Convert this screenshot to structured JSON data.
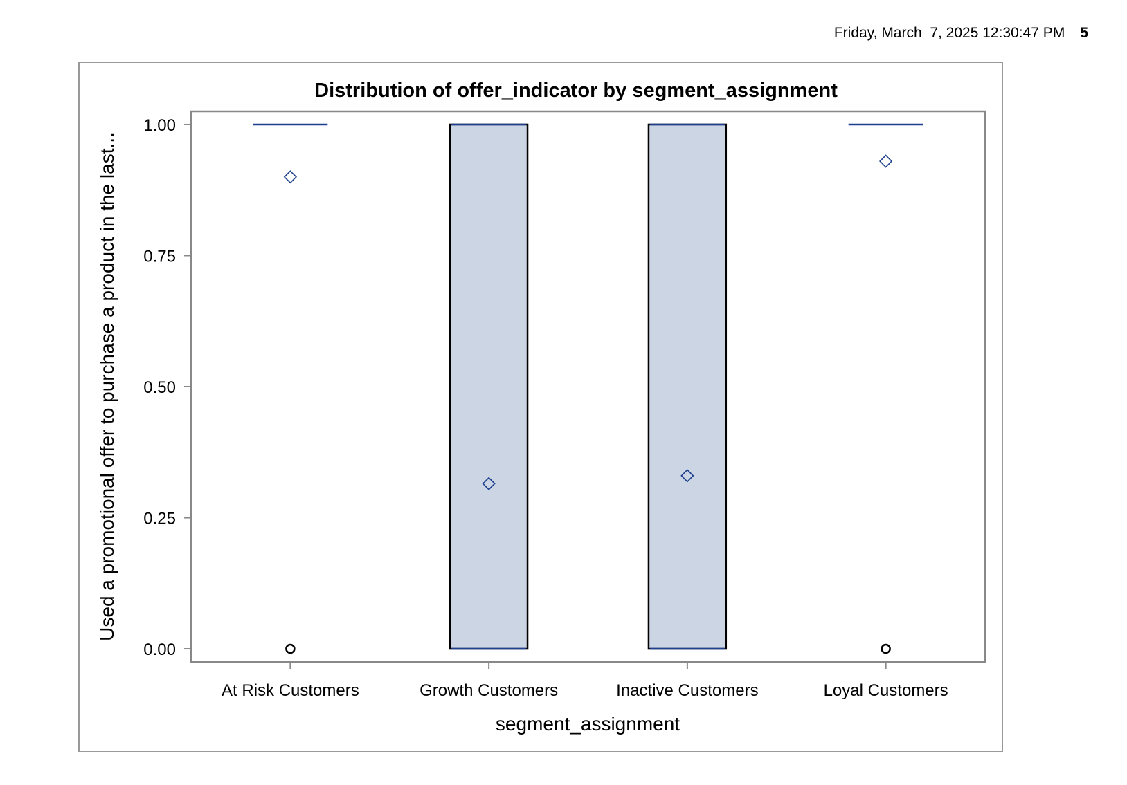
{
  "header": {
    "datetime": "Friday, March  7, 2025 12:30:47 PM",
    "page_number": "5"
  },
  "colors": {
    "box_fill": "#cbd5e4",
    "median_line": "#1f3f8f",
    "mean_marker": "#1f3f8f",
    "outlier_marker": "#000000",
    "axis": "#888888"
  },
  "chart_data": {
    "type": "boxplot",
    "title": "Distribution of offer_indicator by segment_assignment",
    "xlabel": "segment_assignment",
    "ylabel": "Used a promotional offer to purchase a product in the last...",
    "ylim": [
      -0.025,
      1.025
    ],
    "yticks": [
      0,
      0.25,
      0.5,
      0.75,
      1.0
    ],
    "ytick_labels": [
      "0.00",
      "0.25",
      "0.50",
      "0.75",
      "1.00"
    ],
    "categories": [
      "At Risk Customers",
      "Growth Customers",
      "Inactive Customers",
      "Loyal Customers"
    ],
    "boxes": [
      {
        "category": "At Risk Customers",
        "q1": 1,
        "median": 1,
        "q3": 1,
        "mean": 0.9,
        "outliers": [
          0
        ]
      },
      {
        "category": "Growth Customers",
        "q1": 0,
        "median": 1,
        "q3": 1,
        "mean": 0.315,
        "outliers": []
      },
      {
        "category": "Inactive Customers",
        "q1": 0,
        "median": 1,
        "q3": 1,
        "mean": 0.33,
        "outliers": []
      },
      {
        "category": "Loyal Customers",
        "q1": 1,
        "median": 1,
        "q3": 1,
        "mean": 0.93,
        "outliers": [
          0
        ]
      }
    ]
  }
}
